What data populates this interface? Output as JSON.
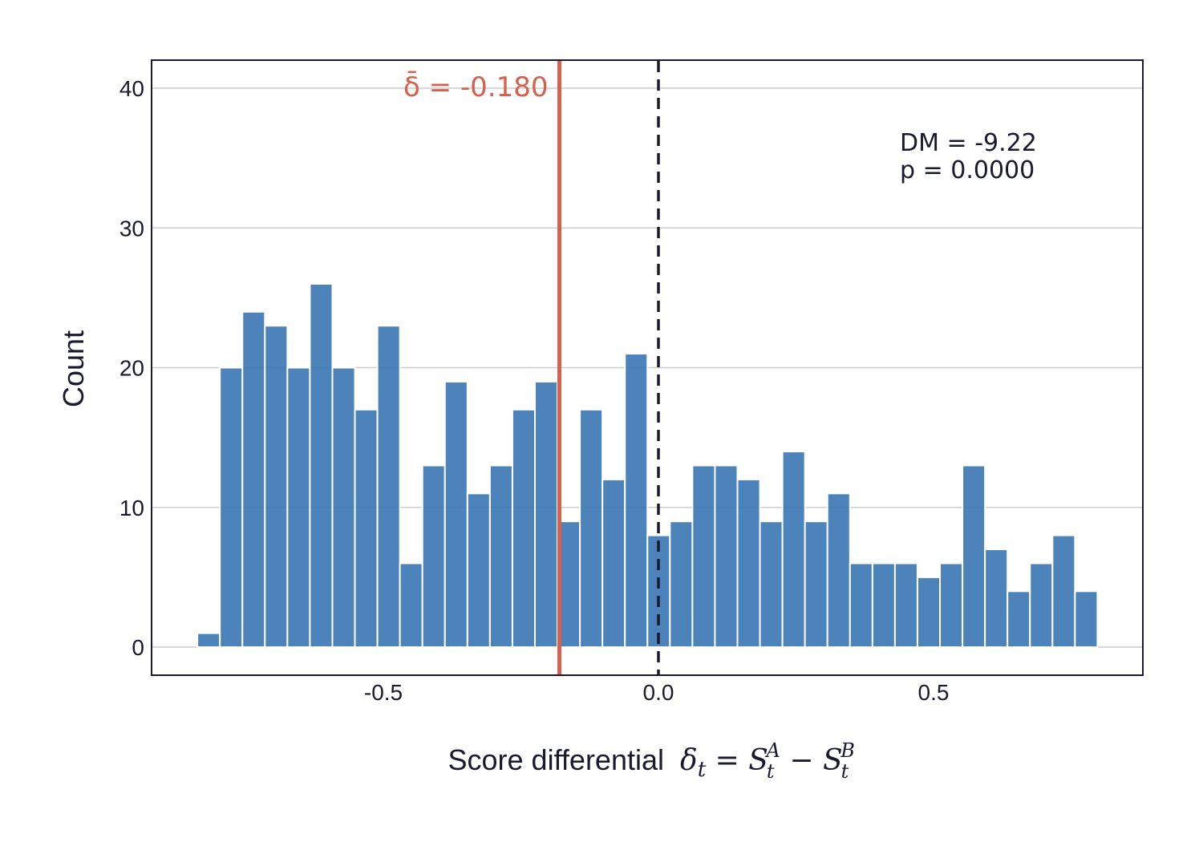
{
  "chart_data": {
    "type": "bar",
    "subtype": "histogram",
    "xlabel": "Score differential  δt = S_t^A − S_t^B",
    "xlabel_text": "Score differential",
    "xlabel_math": "δ_t = S_t^A − S_t^B",
    "ylabel": "Count",
    "xlim": [
      -0.92,
      0.88
    ],
    "ylim": [
      -2,
      42
    ],
    "xticks": [
      -0.5,
      0.0,
      0.5
    ],
    "xtick_labels": [
      "-0.5",
      "0.0",
      "0.5"
    ],
    "yticks": [
      0,
      10,
      20,
      30,
      40
    ],
    "ytick_labels": [
      "0",
      "10",
      "20",
      "30",
      "40"
    ],
    "grid": "horizontal",
    "bin_start": -0.838,
    "bin_width": 0.0409,
    "values": [
      1,
      20,
      24,
      23,
      20,
      26,
      20,
      17,
      23,
      6,
      13,
      19,
      11,
      13,
      17,
      19,
      9,
      17,
      12,
      21,
      8,
      9,
      13,
      13,
      12,
      9,
      14,
      9,
      11,
      6,
      6,
      6,
      5,
      6,
      13,
      7,
      4,
      6,
      8,
      4
    ],
    "bar_color": "#3a75b4",
    "mean_line": {
      "x": -0.18,
      "label": "δ̄ = -0.180",
      "color": "#d6604d"
    },
    "zero_line": {
      "x": 0.0,
      "style": "dashed",
      "color": "#1a1a2e"
    },
    "annotations": [
      "DM = -9.22",
      "p = 0.0000"
    ]
  }
}
